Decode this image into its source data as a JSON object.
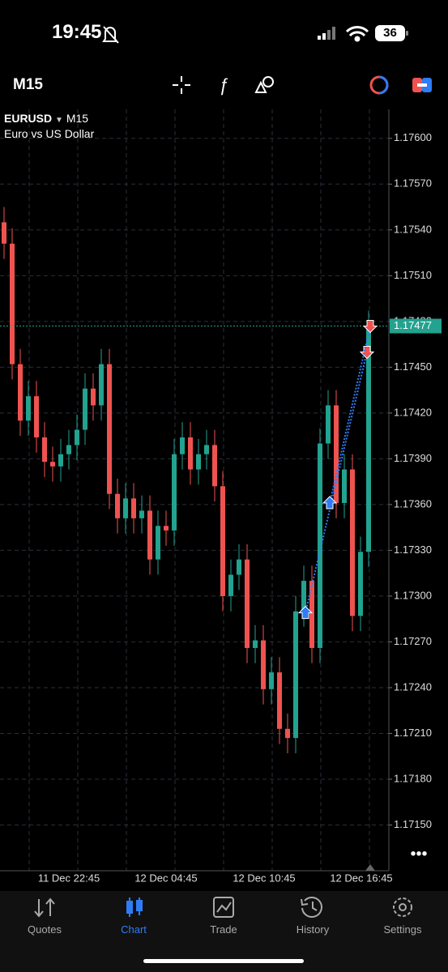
{
  "status_bar": {
    "time": "19:45",
    "battery": "36"
  },
  "toolbar": {
    "timeframe": "M15"
  },
  "chart_data": {
    "type": "candlestick",
    "symbol": "EURUSD",
    "timeframe": "M15",
    "description": "Euro vs US Dollar",
    "up_color": "#22a28f",
    "down_color": "#ef5350",
    "open": [
      1.17545,
      1.17531,
      1.17452,
      1.17415,
      1.17431,
      1.17404,
      1.17388,
      1.17385,
      1.17393,
      1.17399,
      1.17409,
      1.17436,
      1.17425,
      1.17452,
      1.17367,
      1.17351,
      1.17364,
      1.17351,
      1.17356,
      1.17324,
      1.17346,
      1.17343,
      1.17393,
      1.17404,
      1.17383,
      1.17393,
      1.17399,
      1.17372,
      1.173,
      1.17314,
      1.17324,
      1.17266,
      1.17271,
      1.17239,
      1.1725,
      1.17213,
      1.17207,
      1.1729,
      1.1731,
      1.17266,
      1.174,
      1.17425,
      1.17361,
      1.17383,
      1.17287,
      1.17329
    ],
    "high": [
      1.17555,
      1.17541,
      1.17462,
      1.17441,
      1.17441,
      1.17414,
      1.17398,
      1.17403,
      1.17409,
      1.17419,
      1.17446,
      1.17446,
      1.17462,
      1.17462,
      1.17377,
      1.17374,
      1.17374,
      1.17366,
      1.17366,
      1.17356,
      1.17356,
      1.17403,
      1.17414,
      1.17414,
      1.17403,
      1.17409,
      1.17409,
      1.17382,
      1.17324,
      1.17334,
      1.17334,
      1.17281,
      1.17281,
      1.1726,
      1.1726,
      1.17223,
      1.173,
      1.1732,
      1.1732,
      1.1741,
      1.17435,
      1.17435,
      1.17393,
      1.17393,
      1.17339,
      1.17487
    ],
    "low": [
      1.17521,
      1.17442,
      1.17405,
      1.17405,
      1.17394,
      1.17378,
      1.17375,
      1.17375,
      1.17383,
      1.17389,
      1.17399,
      1.17415,
      1.17415,
      1.17357,
      1.17341,
      1.17341,
      1.17341,
      1.17341,
      1.17314,
      1.17314,
      1.17333,
      1.17333,
      1.17383,
      1.17373,
      1.17373,
      1.17383,
      1.17362,
      1.1729,
      1.1729,
      1.17304,
      1.17256,
      1.17256,
      1.17229,
      1.17229,
      1.17203,
      1.17197,
      1.17197,
      1.1728,
      1.17256,
      1.17256,
      1.1739,
      1.17351,
      1.17351,
      1.17277,
      1.17277,
      1.17319
    ],
    "close": [
      1.17531,
      1.17452,
      1.17415,
      1.17431,
      1.17404,
      1.17388,
      1.17385,
      1.17393,
      1.17399,
      1.17409,
      1.17436,
      1.17425,
      1.17452,
      1.17367,
      1.17351,
      1.17364,
      1.17351,
      1.17356,
      1.17324,
      1.17346,
      1.17343,
      1.17393,
      1.17404,
      1.17383,
      1.17393,
      1.17399,
      1.17372,
      1.173,
      1.17314,
      1.17324,
      1.17266,
      1.17271,
      1.17239,
      1.1725,
      1.17213,
      1.17207,
      1.1729,
      1.1731,
      1.17266,
      1.174,
      1.17425,
      1.17361,
      1.17383,
      1.17287,
      1.17329,
      1.17477
    ],
    "ylim": [
      1.1712,
      1.17619
    ],
    "yticks": [
      {
        "value": 1.176,
        "label": "1.17600"
      },
      {
        "value": 1.1757,
        "label": "1.17570"
      },
      {
        "value": 1.1754,
        "label": "1.17540"
      },
      {
        "value": 1.1751,
        "label": "1.17510"
      },
      {
        "value": 1.1748,
        "label": "1.17480"
      },
      {
        "value": 1.1745,
        "label": "1.17450"
      },
      {
        "value": 1.1742,
        "label": "1.17420"
      },
      {
        "value": 1.1739,
        "label": "1.17390"
      },
      {
        "value": 1.1736,
        "label": "1.17360"
      },
      {
        "value": 1.1733,
        "label": "1.17330"
      },
      {
        "value": 1.173,
        "label": "1.17300"
      },
      {
        "value": 1.1727,
        "label": "1.17270"
      },
      {
        "value": 1.1724,
        "label": "1.17240"
      },
      {
        "value": 1.1721,
        "label": "1.17210"
      },
      {
        "value": 1.1718,
        "label": "1.17180"
      },
      {
        "value": 1.1715,
        "label": "1.17150"
      }
    ],
    "current_price": 1.17477,
    "x_labels": [
      "11 Dec 22:45",
      "12 Dec 04:45",
      "12 Dec 10:45",
      "12 Dec 16:45"
    ],
    "grid": true,
    "trades": [
      {
        "open": 1.17289,
        "close": 1.1746
      },
      {
        "open": 1.17361,
        "close": 1.17477
      }
    ]
  },
  "nav": {
    "items": [
      "Quotes",
      "Chart",
      "Trade",
      "History",
      "Settings"
    ]
  }
}
